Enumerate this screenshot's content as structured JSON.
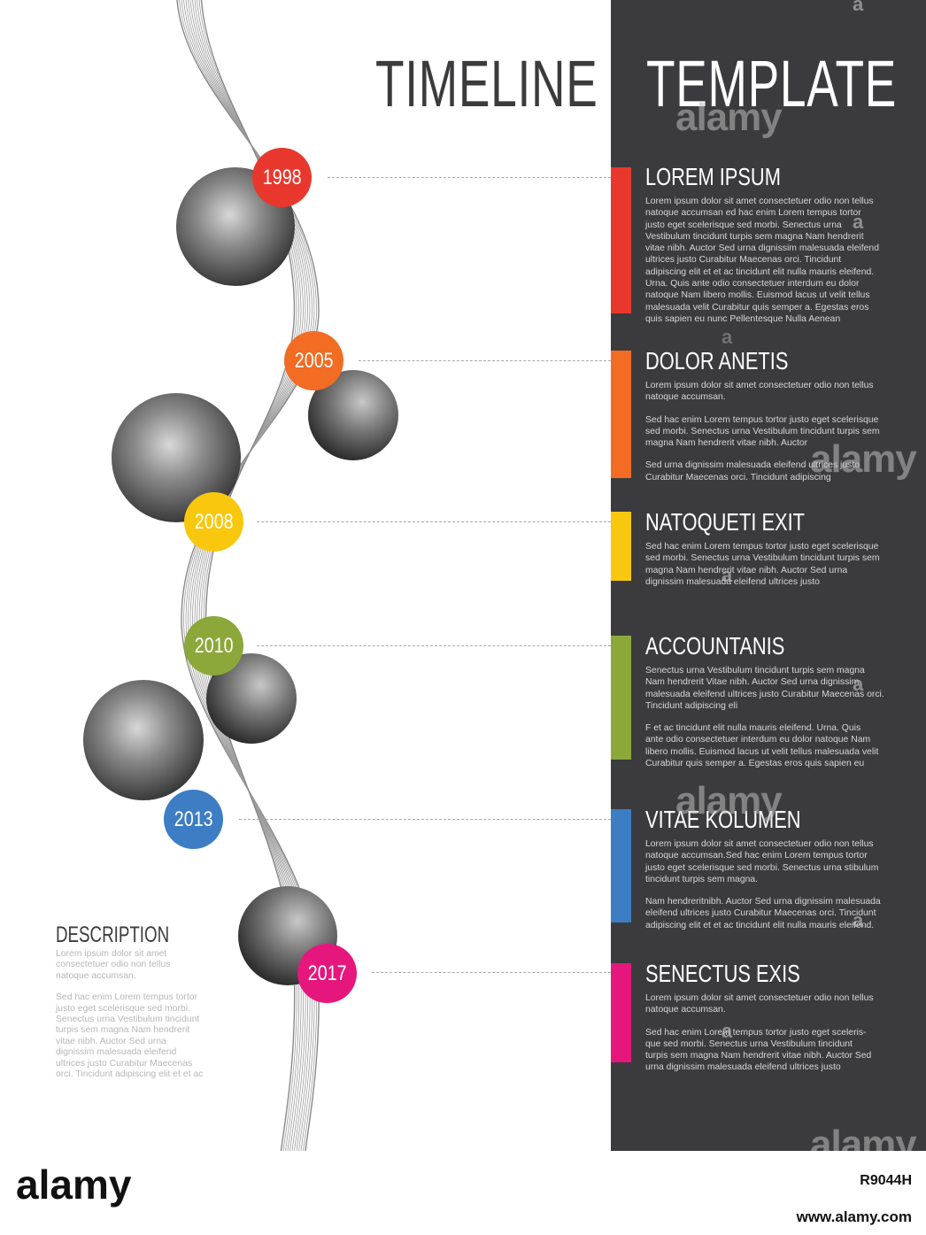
{
  "title": {
    "left": "TIMELINE",
    "right": "TEMPLATE"
  },
  "colors": {
    "panel": "#3b3b3d",
    "red": "#e8382d",
    "orange": "#f26c23",
    "yellow": "#f9c80e",
    "green": "#8ca83a",
    "blue": "#3c7dc4",
    "pink": "#e5177d"
  },
  "years": [
    "1998",
    "2005",
    "2008",
    "2010",
    "2013",
    "2017"
  ],
  "entries": [
    {
      "heading": "LOREM IPSUM",
      "paragraphs": [
        "Lorem ipsum dolor sit amet consectetuer odio non tellus\nnatoque accumsan ed hac enim Lorem tempus tortor\njusto eget scelerisque sed morbi. Senectus urna\nVestibulum tincidunt turpis sem magna Nam hendrerit\nvitae nibh. Auctor Sed urna dignissim malesuada eleifend\nultrices justo Curabitur Maecenas orci. Tincidunt\nadipiscing elit et et ac tincidunt elit nulla mauris eleifend.\nUrna. Quis ante odio consectetuer interdum eu dolor\nnatoque Nam libero mollis. Euismod lacus ut velit tellus\nmalesuada velit Curabitur quis semper a. Egestas eros\nquis sapien eu nunc Pellentesque Nulla Aenean"
      ]
    },
    {
      "heading": "DOLOR ANETIS",
      "paragraphs": [
        "Lorem ipsum dolor sit amet consectetuer odio non tellus\nnatoque accumsan.",
        "Sed hac enim Lorem tempus tortor justo eget scelerisque\nsed morbi. Senectus urna Vestibulum tincidunt turpis sem\nmagna Nam hendrerit vitae nibh. Auctor",
        "Sed urna dignissim malesuada eleifend ultrices justo\nCurabitur Maecenas orci. Tincidunt adipiscing"
      ]
    },
    {
      "heading": "NATOQUETI EXIT",
      "paragraphs": [
        "Sed hac enim Lorem tempus tortor justo eget scelerisque\nsed morbi. Senectus urna Vestibulum tincidunt turpis sem\nmagna Nam hendrerit vitae nibh. Auctor Sed urna\ndignissim malesuada eleifend ultrices justo"
      ]
    },
    {
      "heading": "ACCOUNTANIS",
      "paragraphs": [
        "Senectus urna Vestibulum tincidunt turpis sem magna\nNam hendrerit Vitae nibh. Auctor Sed urna dignissim\nmalesuada eleifend ultrices justo Curabitur Maecenas orci.\nTincidunt adipiscing eli",
        "F et ac tincidunt elit nulla mauris eleifend. Urna. Quis\nante odio consectetuer interdum eu dolor natoque Nam\nlibero mollis. Euismod lacus ut velit tellus malesuada velit\nCurabitur quis semper a. Egestas eros quis sapien eu"
      ]
    },
    {
      "heading": "VITAE KOLUMEN",
      "paragraphs": [
        "Lorem ipsum dolor sit amet consectetuer odio non tellus\nnatoque accumsan.Sed hac enim Lorem tempus tortor\njusto eget scelerisque sed morbi. Senectus urna stibulum\ntincidunt turpis sem magna.",
        "Nam hendreritnibh. Auctor Sed urna dignissim malesuada\neleifend ultrices justo Curabitur Maecenas orci. Tincidunt\nadipiscing elit et et ac tincidunt elit nulla mauris eleifend."
      ]
    },
    {
      "heading": "SENECTUS EXIS",
      "paragraphs": [
        "Lorem ipsum dolor sit amet consectetuer odio non tellus\nnatoque accumsan.",
        "Sed hac enim Lorem tempus tortor justo eget sceleris-\nque sed morbi. Senectus urna Vestibulum tincidunt\nturpis sem magna Nam hendrerit vitae nibh. Auctor Sed\nurna dignissim malesuada eleifend ultrices justo"
      ]
    }
  ],
  "description": {
    "title": "DESCRIPTION",
    "paragraphs": [
      "Lorem ipsum dolor sit amet\nconsectetuer odio non tellus\nnatoque accumsan.",
      "Sed hac enim Lorem tempus tortor\njusto eget scelerisque sed morbi.\nSenectus urna Vestibulum tincidunt\nturpis sem magna Nam hendrerit\nvitae nibh. Auctor Sed urna\ndignissim malesuada eleifend\nultrices justo Curabitur Maecenas\norci. Tincidunt adipiscing elit et et ac"
    ]
  },
  "watermark": {
    "brand": "alamy",
    "small": "a",
    "image_id": "R9044H",
    "url": "www.alamy.com"
  }
}
